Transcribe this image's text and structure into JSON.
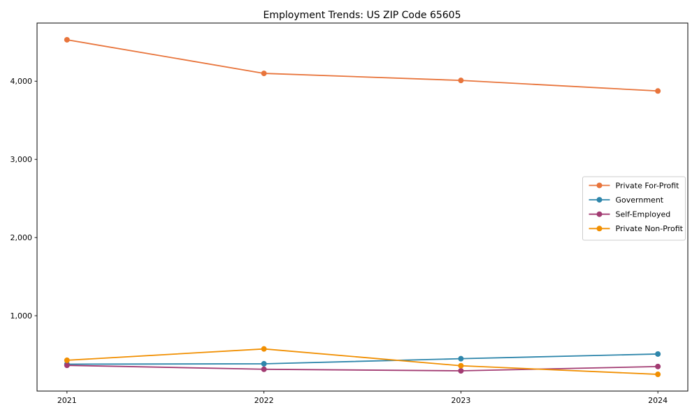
{
  "figure": {
    "background": "#ffffff"
  },
  "chart_data": {
    "type": "line",
    "title": "Employment Trends: US ZIP Code 65605",
    "xlabel": "",
    "ylabel": "",
    "x": [
      "2021",
      "2022",
      "2023",
      "2024"
    ],
    "series": [
      {
        "name": "Private For-Profit",
        "color": "#E8743B",
        "values": [
          4530,
          4100,
          4010,
          3875
        ]
      },
      {
        "name": "Government",
        "color": "#2E86AB",
        "values": [
          380,
          385,
          450,
          510
        ]
      },
      {
        "name": "Self-Employed",
        "color": "#A23B72",
        "values": [
          365,
          315,
          295,
          350
        ]
      },
      {
        "name": "Private Non-Profit",
        "color": "#F18F01",
        "values": [
          430,
          575,
          360,
          250
        ]
      }
    ],
    "ylim": [
      36,
      4744
    ],
    "yticks": [
      1000,
      2000,
      3000,
      4000
    ],
    "ytick_labels": [
      "1,000",
      "2,000",
      "3,000",
      "4,000"
    ],
    "grid": false,
    "marker": "circle",
    "line_width": 1.8,
    "marker_radius": 4,
    "axis_color": "#000000",
    "legend": {
      "position": "center right",
      "border_color": "#cccccc",
      "background": "#ffffff"
    }
  }
}
